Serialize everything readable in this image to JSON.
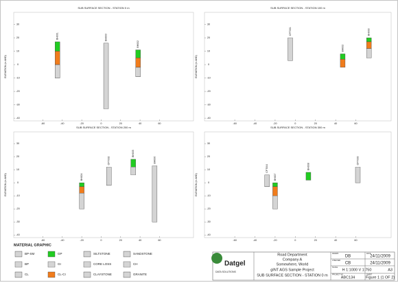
{
  "panels": [
    {
      "title": "SUB SURFACE SECTION - STATION 0 m",
      "ylabel": "ELEVATION (m AHD)",
      "xlim": [
        -90,
        95
      ],
      "ylim": [
        -42,
        39
      ],
      "xticks": [
        -60,
        -40,
        -20,
        0,
        20,
        40,
        60
      ],
      "yticks": [
        30,
        20,
        10,
        0,
        -10,
        -20,
        -30,
        -40
      ],
      "boreholes": [
        {
          "name": "BH001",
          "x": -45,
          "top": 17,
          "layers": [
            {
              "material": "GP",
              "to": 10
            },
            {
              "material": "CL-CI",
              "to": 0
            },
            {
              "material": "BP",
              "to": -10
            }
          ]
        },
        {
          "name": "BH003",
          "x": 5,
          "top": 16,
          "layers": [
            {
              "material": "SILTSTONE",
              "to": -33
            }
          ]
        },
        {
          "name": "BH002",
          "x": 38,
          "top": 11,
          "layers": [
            {
              "material": "GP",
              "to": 5
            },
            {
              "material": "CL-CI",
              "to": -2
            },
            {
              "material": "BP",
              "to": -9
            }
          ]
        }
      ]
    },
    {
      "title": "SUB SURFACE SECTION - STATION 100 m",
      "ylabel": "ELEVATION (m AHD)",
      "xlim": [
        -90,
        95
      ],
      "ylim": [
        -42,
        39
      ],
      "xticks": [
        -60,
        -40,
        -20,
        0,
        20,
        40,
        60
      ],
      "yticks": [
        30,
        20,
        10,
        0,
        -10,
        -20,
        -30,
        -40
      ],
      "boreholes": [
        {
          "name": "CPT001",
          "x": -5,
          "top": 20,
          "layers": [
            {
              "material": "CLAYSTONE",
              "to": 3
            }
          ]
        },
        {
          "name": "BH002",
          "x": 47,
          "top": 8,
          "layers": [
            {
              "material": "GP",
              "to": 4
            },
            {
              "material": "CL-CI",
              "to": -2
            }
          ]
        },
        {
          "name": "BH003",
          "x": 73,
          "top": 20,
          "layers": [
            {
              "material": "GP",
              "to": 17
            },
            {
              "material": "CL-CI",
              "to": 12
            },
            {
              "material": "BP",
              "to": 5
            }
          ]
        }
      ]
    },
    {
      "title": "SUB SURFACE SECTION - STATION 200 m",
      "ylabel": "ELEVATION (m AHD)",
      "xlim": [
        -90,
        95
      ],
      "ylim": [
        -42,
        39
      ],
      "xticks": [
        -60,
        -40,
        -20,
        0,
        20,
        40,
        60
      ],
      "yticks": [
        30,
        20,
        10,
        0,
        -10,
        -20,
        -30,
        -40
      ],
      "boreholes": [
        {
          "name": "BH004",
          "x": -20,
          "top": 0,
          "layers": [
            {
              "material": "GP",
              "to": -3
            },
            {
              "material": "CL-CI",
              "to": -8
            },
            {
              "material": "BP",
              "to": -20
            }
          ]
        },
        {
          "name": "CPT002",
          "x": 8,
          "top": 12,
          "layers": [
            {
              "material": "CLAYSTONE",
              "to": -2
            }
          ]
        },
        {
          "name": "BH005",
          "x": 33,
          "top": 18,
          "layers": [
            {
              "material": "GP",
              "to": 12
            },
            {
              "material": "BP",
              "to": 6
            }
          ]
        },
        {
          "name": "BH006",
          "x": 55,
          "top": 13,
          "layers": [
            {
              "material": "SILTSTONE",
              "to": -30
            }
          ]
        }
      ]
    },
    {
      "title": "SUB SURFACE SECTION - STATION 300 m",
      "ylabel": "ELEVATION (m AHD)",
      "xlim": [
        -90,
        95
      ],
      "ylim": [
        -42,
        39
      ],
      "xticks": [
        -60,
        -40,
        -20,
        0,
        20,
        40,
        60
      ],
      "yticks": [
        30,
        20,
        10,
        0,
        -10,
        -20,
        -30,
        -40
      ],
      "boreholes": [
        {
          "name": "CPT004",
          "x": -28,
          "top": 6,
          "layers": [
            {
              "material": "CLAYSTONE",
              "to": -3
            }
          ]
        },
        {
          "name": "BH007",
          "x": -20,
          "top": 0,
          "layers": [
            {
              "material": "GP",
              "to": -3
            },
            {
              "material": "CL-CI",
              "to": -10
            },
            {
              "material": "BP",
              "to": -20
            }
          ]
        },
        {
          "name": "BH008",
          "x": 13,
          "top": 8,
          "layers": [
            {
              "material": "GP",
              "to": 2
            }
          ]
        },
        {
          "name": "CPT003",
          "x": 62,
          "top": 12,
          "layers": [
            {
              "material": "CLAYSTONE",
              "to": 0
            }
          ]
        }
      ]
    }
  ],
  "legend": {
    "title": "MATERIAL GRAPHIC",
    "materials": [
      {
        "name": "BP-SM",
        "color": "#ffffff"
      },
      {
        "name": "GP",
        "color": "#22cc22"
      },
      {
        "name": "SILTSTONE",
        "color": "#ffffff"
      },
      {
        "name": "SANDSTONE",
        "color": "#ffffff"
      },
      {
        "name": "BP",
        "color": "#ffffff"
      },
      {
        "name": "GI",
        "color": "#ffffff"
      },
      {
        "name": "CORE LOSS",
        "color": "#ffffff"
      },
      {
        "name": "CH",
        "color": "#ffffff"
      },
      {
        "name": "CL",
        "color": "#ffffff"
      },
      {
        "name": "CL-CI",
        "color": "#f07c1c"
      },
      {
        "name": "CLAYSTONE",
        "color": "#ffffff"
      },
      {
        "name": "GRANITE",
        "color": "#ffffff"
      }
    ]
  },
  "title_block": {
    "logo": "Datgel",
    "logo_sub": "DATA SOLUTIONS",
    "client": [
      "Road Department",
      "Company A",
      "Somewhere, World"
    ],
    "project": "gINT AGS Sample Project",
    "drawing": "SUB SURFACE SECTION - STATION 0 m",
    "drawn_label": "DRAWN",
    "drawn": "DB",
    "checked_label": "CHECKED",
    "checked": "CB",
    "date_label": "DATE",
    "drawn_date": "24/11/2009",
    "checked_date": "24/11/2009",
    "scale_label": "SCALE",
    "scale": "H 1:1000 V 1:750",
    "size": "A3",
    "project_label": "PROJECT NO",
    "project_no": "ABC134",
    "sheet_label": "SHEET",
    "sheet": "Figure 1 (1 OF 2)"
  }
}
